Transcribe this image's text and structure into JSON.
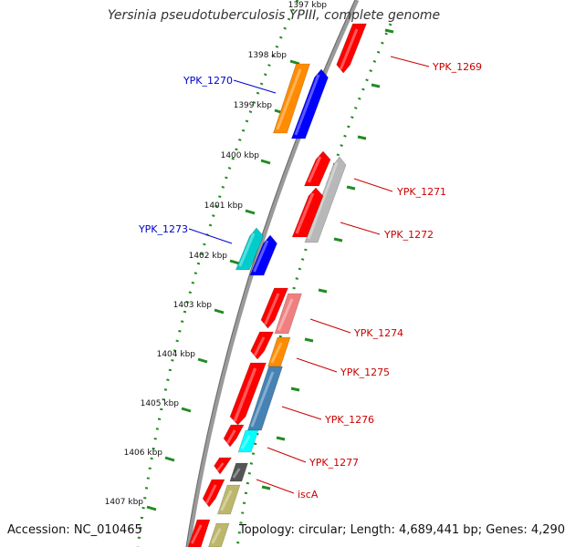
{
  "title": "Yersinia pseudotuberculosis YPIII, complete genome",
  "accession_label": "Accession: NC_010465",
  "summary_label": "Topology: circular; Length: 4,689,441 bp; Genes: 4,290",
  "scale_labels": [
    "1397 kbp",
    "1398 kbp",
    "1399 kbp",
    "1400 kbp",
    "1401 kbp",
    "1402 kbp",
    "1403 kbp",
    "1404 kbp",
    "1405 kbp",
    "1406 kbp",
    "1407 kbp"
  ],
  "colors": {
    "red": "#ff0000",
    "blue": "#0000ff",
    "orange": "#ff8c00",
    "grey": "#b8b8b8",
    "cyan": "#00cccc",
    "pink": "#f08080",
    "steelblue": "#4682b4",
    "aqua": "#00ffff",
    "darkgrey": "#555555",
    "khaki": "#bdb76b",
    "tick_green": "#228b22",
    "backbone": "#808080",
    "left_label": "#0000cd",
    "right_label": "#cc0000"
  },
  "genes_left": [
    {
      "label": "YPK_1270"
    },
    {
      "label": "YPK_1273"
    }
  ],
  "genes_right": [
    {
      "label": "YPK_1269"
    },
    {
      "label": "YPK_1271"
    },
    {
      "label": "YPK_1272"
    },
    {
      "label": "YPK_1274"
    },
    {
      "label": "YPK_1275"
    },
    {
      "label": "YPK_1276"
    },
    {
      "label": "YPK_1277"
    },
    {
      "label": "iscA"
    }
  ]
}
